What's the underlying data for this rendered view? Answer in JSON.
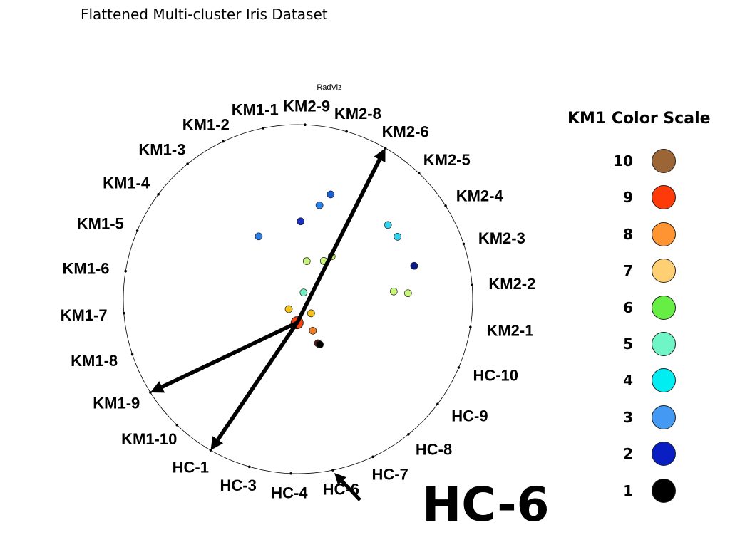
{
  "slide_title": "Flattened Multi-cluster Iris Dataset",
  "callout_label": "HC-6",
  "legend": {
    "title": "KM1 Color Scale",
    "items": [
      {
        "label": "10",
        "color": "#9b6535"
      },
      {
        "label": "9",
        "color": "#ff3a0a"
      },
      {
        "label": "8",
        "color": "#ff9433"
      },
      {
        "label": "7",
        "color": "#ffcf73"
      },
      {
        "label": "6",
        "color": "#66ee44"
      },
      {
        "label": "5",
        "color": "#70f5c6"
      },
      {
        "label": "4",
        "color": "#00eef2"
      },
      {
        "label": "3",
        "color": "#4499f2"
      },
      {
        "label": "2",
        "color": "#0a1fc2"
      },
      {
        "label": "1",
        "color": "#000000"
      }
    ]
  },
  "chart_data": {
    "type": "scatter",
    "title": "RadViz",
    "plot": "radviz",
    "anchors": [
      "HC-1",
      "KM1-10",
      "KM1-9",
      "KM1-8",
      "KM1-7",
      "KM1-6",
      "KM1-5",
      "KM1-4",
      "KM1-3",
      "KM1-2",
      "KM1-1",
      "KM2-9",
      "KM2-8",
      "KM2-6",
      "KM2-5",
      "KM2-4",
      "KM2-3",
      "KM2-2",
      "KM2-1",
      "HC-10",
      "HC-9",
      "HC-8",
      "HC-7",
      "HC-6",
      "HC-4",
      "HC-3"
    ],
    "points": [
      {
        "x": 0.187,
        "y": 0.6,
        "color": "#1a5fd6"
      },
      {
        "x": 0.123,
        "y": 0.538,
        "color": "#2a7fe8"
      },
      {
        "x": 0.015,
        "y": 0.446,
        "color": "#1b2fc0"
      },
      {
        "x": -0.225,
        "y": 0.36,
        "color": "#2a7fe8"
      },
      {
        "x": 0.515,
        "y": 0.425,
        "color": "#33d2ee"
      },
      {
        "x": 0.57,
        "y": 0.358,
        "color": "#33d2ee"
      },
      {
        "x": 0.665,
        "y": 0.191,
        "color": "#0a1a8a"
      },
      {
        "x": 0.63,
        "y": 0.034,
        "color": "#c6f57a"
      },
      {
        "x": 0.548,
        "y": 0.044,
        "color": "#c6f57a"
      },
      {
        "x": 0.193,
        "y": 0.246,
        "color": "#c6f57a"
      },
      {
        "x": 0.148,
        "y": 0.219,
        "color": "#c6f57a"
      },
      {
        "x": 0.05,
        "y": 0.218,
        "color": "#c6f57a"
      },
      {
        "x": 0.032,
        "y": 0.038,
        "color": "#70f0c0"
      },
      {
        "x": -0.053,
        "y": -0.057,
        "color": "#f3c31c"
      },
      {
        "x": 0.075,
        "y": -0.081,
        "color": "#f3c31c"
      },
      {
        "x": 0.085,
        "y": -0.181,
        "color": "#ee7f26"
      },
      {
        "x": 0.114,
        "y": -0.253,
        "color": "#5a1a12"
      },
      {
        "x": 0.125,
        "y": -0.26,
        "color": "#000000"
      },
      {
        "x": -0.005,
        "y": -0.135,
        "color": "#ff4411",
        "highlight": true
      }
    ],
    "arrows": [
      {
        "from": "highlighted-point",
        "to": "KM2-6"
      },
      {
        "from": "highlighted-point",
        "to": "KM1-9"
      },
      {
        "from": "highlighted-point",
        "to": "HC-1"
      }
    ]
  }
}
